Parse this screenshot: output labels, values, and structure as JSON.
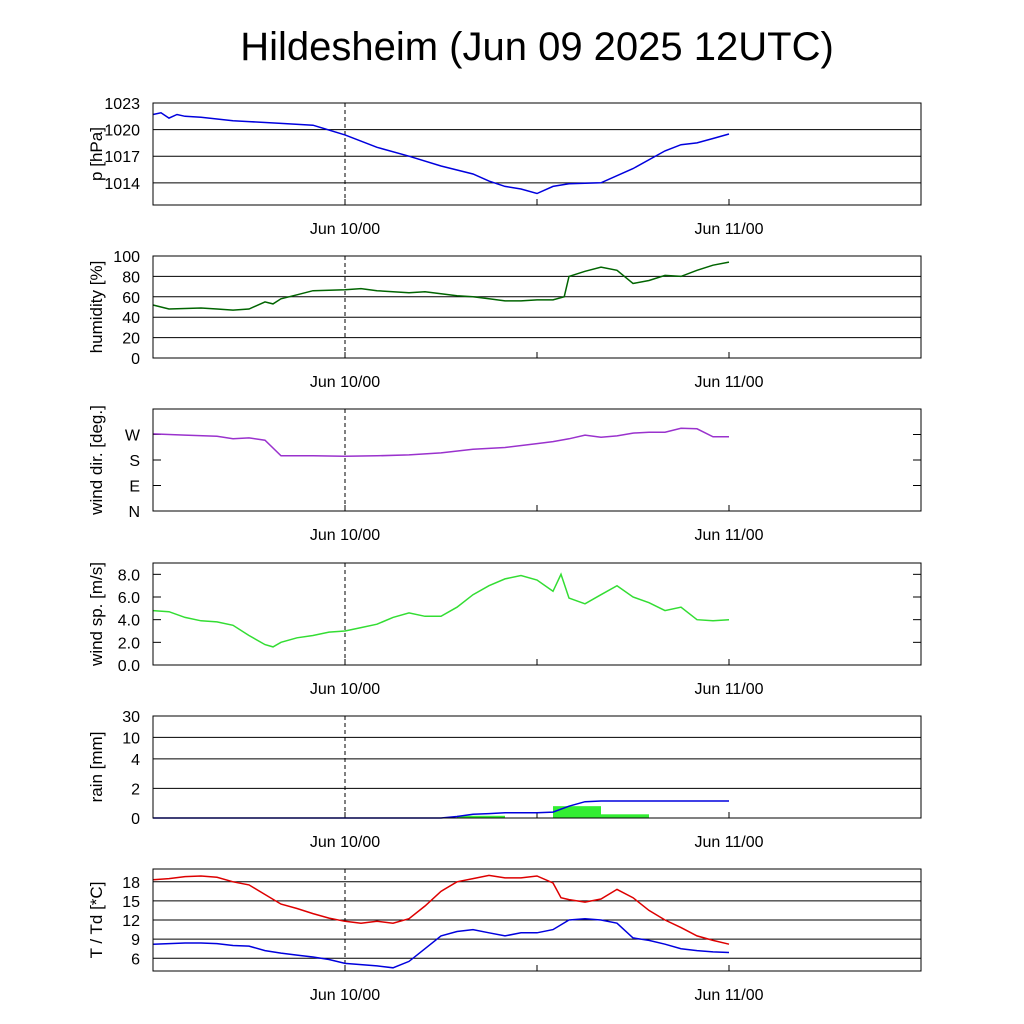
{
  "title": "Hildesheim (Jun 09 2025 12UTC)",
  "chart_data": [
    {
      "type": "line",
      "ylabel": "p [hPa]",
      "xlim": [
        -12,
        36
      ],
      "ylim": [
        1011.5,
        1023
      ],
      "yticks": [
        {
          "v": 1014,
          "label": "1014"
        },
        {
          "v": 1017,
          "label": "1017"
        },
        {
          "v": 1020,
          "label": "1020"
        },
        {
          "v": 1023,
          "label": "1023"
        }
      ],
      "xticks": [
        {
          "v": 0,
          "label": "Jun 10/00"
        },
        {
          "v": 24,
          "label": "Jun 11/00"
        }
      ],
      "grid": true,
      "series": [
        {
          "color": "#0000dd",
          "x": [
            -12,
            -11.5,
            -11,
            -10.5,
            -10,
            -9,
            -8,
            -7,
            -6,
            -4,
            -2,
            0,
            2,
            4,
            6,
            8,
            9,
            10,
            11,
            12,
            13,
            14,
            16,
            18,
            20,
            21,
            22,
            23,
            24
          ],
          "y": [
            1021.7,
            1021.9,
            1021.3,
            1021.7,
            1021.5,
            1021.4,
            1021.2,
            1021.0,
            1020.9,
            1020.7,
            1020.5,
            1019.4,
            1018.0,
            1017.0,
            1015.9,
            1015.0,
            1014.2,
            1013.6,
            1013.3,
            1012.8,
            1013.6,
            1013.9,
            1014.0,
            1015.6,
            1017.6,
            1018.3,
            1018.5,
            1019.0,
            1019.5
          ]
        }
      ]
    },
    {
      "type": "line",
      "ylabel": "humidity [%]",
      "xlim": [
        -12,
        36
      ],
      "ylim": [
        0,
        100
      ],
      "yticks": [
        {
          "v": 0,
          "label": "0"
        },
        {
          "v": 20,
          "label": "20"
        },
        {
          "v": 40,
          "label": "40"
        },
        {
          "v": 60,
          "label": "60"
        },
        {
          "v": 80,
          "label": "80"
        },
        {
          "v": 100,
          "label": "100"
        }
      ],
      "xticks": [
        {
          "v": 0,
          "label": "Jun 10/00"
        },
        {
          "v": 24,
          "label": "Jun 11/00"
        }
      ],
      "grid": true,
      "series": [
        {
          "color": "#006400",
          "x": [
            -12,
            -11,
            -9,
            -8,
            -7,
            -6,
            -5,
            -4.5,
            -4,
            -3,
            -2,
            0,
            1,
            2,
            3,
            4,
            5,
            6,
            7,
            8,
            9,
            10,
            11,
            12,
            13,
            13.7,
            14,
            15,
            16,
            17,
            18,
            19,
            20,
            21,
            22,
            23,
            24
          ],
          "y": [
            52,
            48,
            49,
            48,
            47,
            48,
            55,
            53,
            58,
            62,
            66,
            67,
            68,
            66,
            65,
            64,
            65,
            63,
            61,
            60,
            58,
            56,
            56,
            57,
            57,
            60,
            80,
            85,
            89,
            86,
            73,
            76,
            81,
            80,
            86,
            91,
            94
          ]
        }
      ]
    },
    {
      "type": "line",
      "ylabel": "wind dir. [deg.]",
      "xlim": [
        -12,
        36
      ],
      "ylim": [
        0,
        360
      ],
      "yticks": [
        {
          "v": 0,
          "label": "N"
        },
        {
          "v": 90,
          "label": "E"
        },
        {
          "v": 180,
          "label": "S"
        },
        {
          "v": 270,
          "label": "W"
        }
      ],
      "xticks": [
        {
          "v": 0,
          "label": "Jun 10/00"
        },
        {
          "v": 24,
          "label": "Jun 11/00"
        }
      ],
      "grid": false,
      "series": [
        {
          "color": "#9a32cd",
          "x": [
            -12,
            -10,
            -8,
            -7,
            -6,
            -5,
            -4,
            -3,
            -2,
            0,
            2,
            4,
            6,
            8,
            10,
            12,
            13,
            14,
            15,
            16,
            17,
            18,
            19,
            20,
            21,
            22,
            23,
            24
          ],
          "y": [
            272,
            268,
            264,
            255,
            258,
            250,
            195,
            195,
            195,
            193,
            195,
            198,
            205,
            218,
            224,
            238,
            245,
            255,
            268,
            260,
            265,
            275,
            278,
            278,
            292,
            290,
            262,
            262
          ]
        }
      ]
    },
    {
      "type": "line",
      "ylabel": "wind sp. [m/s]",
      "xlim": [
        -12,
        36
      ],
      "ylim": [
        0,
        9
      ],
      "yticks": [
        {
          "v": 0,
          "label": "0.0"
        },
        {
          "v": 2,
          "label": "2.0"
        },
        {
          "v": 4,
          "label": "4.0"
        },
        {
          "v": 6,
          "label": "6.0"
        },
        {
          "v": 8,
          "label": "8.0"
        }
      ],
      "xticks": [
        {
          "v": 0,
          "label": "Jun 10/00"
        },
        {
          "v": 24,
          "label": "Jun 11/00"
        }
      ],
      "grid": false,
      "series": [
        {
          "color": "#33dd33",
          "x": [
            -12,
            -11,
            -10,
            -9,
            -8,
            -7,
            -6,
            -5,
            -4.5,
            -4,
            -3,
            -2,
            -1,
            0,
            1,
            2,
            3,
            4,
            5,
            6,
            7,
            8,
            9,
            10,
            11,
            12,
            13,
            13.5,
            14,
            15,
            16,
            17,
            18,
            19,
            20,
            21,
            22,
            23,
            24
          ],
          "y": [
            4.8,
            4.7,
            4.2,
            3.9,
            3.8,
            3.5,
            2.6,
            1.8,
            1.6,
            2.0,
            2.4,
            2.6,
            2.9,
            3.0,
            3.3,
            3.6,
            4.2,
            4.6,
            4.3,
            4.3,
            5.1,
            6.2,
            7.0,
            7.6,
            7.9,
            7.5,
            6.5,
            8.0,
            5.9,
            5.4,
            6.2,
            7.0,
            6.0,
            5.5,
            4.8,
            5.1,
            4.0,
            3.9,
            4.0
          ]
        }
      ]
    },
    {
      "type": "line",
      "ylabel": "rain [mm]",
      "xlim": [
        -12,
        36
      ],
      "ylim": [
        0,
        30
      ],
      "yticks": [
        {
          "v": 0,
          "label": "0"
        },
        {
          "v": 2,
          "label": "2"
        },
        {
          "v": 4,
          "label": "4"
        },
        {
          "v": 10,
          "label": "10"
        },
        {
          "v": 30,
          "label": "30"
        }
      ],
      "xticks": [
        {
          "v": 0,
          "label": "Jun 10/00"
        },
        {
          "v": 24,
          "label": "Jun 11/00"
        }
      ],
      "grid": true,
      "bars": {
        "color": "#33ee33",
        "items": [
          {
            "x0": 7,
            "x1": 10,
            "y": 0.15
          },
          {
            "x0": 13,
            "x1": 16,
            "y": 0.8
          },
          {
            "x0": 16,
            "x1": 19,
            "y": 0.25
          }
        ]
      },
      "series": [
        {
          "color": "#0000dd",
          "x": [
            -12,
            6,
            7,
            8,
            9,
            10,
            12,
            13,
            14,
            15,
            16,
            24
          ],
          "y": [
            0,
            0,
            0.1,
            0.25,
            0.3,
            0.35,
            0.35,
            0.4,
            0.8,
            1.1,
            1.15,
            1.15
          ]
        }
      ]
    },
    {
      "type": "line",
      "ylabel": "T / Td [*C]",
      "xlim": [
        -12,
        36
      ],
      "ylim": [
        4,
        20
      ],
      "yticks": [
        {
          "v": 6,
          "label": "6"
        },
        {
          "v": 9,
          "label": "9"
        },
        {
          "v": 12,
          "label": "12"
        },
        {
          "v": 15,
          "label": "15"
        },
        {
          "v": 18,
          "label": "18"
        }
      ],
      "xticks": [
        {
          "v": 0,
          "label": "Jun 10/00"
        },
        {
          "v": 24,
          "label": "Jun 11/00"
        }
      ],
      "grid": true,
      "series": [
        {
          "color": "#dd0000",
          "x": [
            -12,
            -11,
            -10,
            -9,
            -8,
            -7,
            -6,
            -5,
            -4,
            -3,
            -2,
            -1,
            0,
            1,
            2,
            3,
            4,
            5,
            6,
            7,
            8,
            9,
            10,
            11,
            12,
            13,
            13.5,
            14,
            15,
            16,
            17,
            18,
            19,
            20,
            21,
            22,
            23,
            24
          ],
          "y": [
            18.3,
            18.5,
            18.8,
            18.9,
            18.7,
            18.0,
            17.5,
            16.0,
            14.5,
            13.8,
            13.0,
            12.3,
            11.8,
            11.5,
            11.8,
            11.5,
            12.2,
            14.2,
            16.5,
            18.0,
            18.5,
            19.0,
            18.6,
            18.6,
            18.9,
            17.8,
            15.5,
            15.2,
            14.8,
            15.3,
            16.8,
            15.5,
            13.5,
            12.0,
            10.8,
            9.5,
            8.8,
            8.2
          ]
        },
        {
          "color": "#0000dd",
          "x": [
            -12,
            -11,
            -10,
            -9,
            -8,
            -7,
            -6,
            -5,
            -4,
            -3,
            -2,
            -1,
            0,
            1,
            2,
            3,
            4,
            5,
            6,
            7,
            8,
            9,
            10,
            11,
            12,
            13,
            14,
            15,
            16,
            17,
            18,
            19,
            20,
            21,
            22,
            23,
            24
          ],
          "y": [
            8.2,
            8.3,
            8.4,
            8.4,
            8.3,
            8.0,
            7.9,
            7.2,
            6.8,
            6.5,
            6.2,
            5.8,
            5.2,
            5.0,
            4.8,
            4.5,
            5.5,
            7.5,
            9.5,
            10.2,
            10.5,
            10.0,
            9.5,
            10.0,
            10.0,
            10.5,
            12.0,
            12.2,
            12.0,
            11.5,
            9.2,
            8.8,
            8.2,
            7.5,
            7.2,
            7.0,
            6.9
          ]
        }
      ]
    }
  ]
}
